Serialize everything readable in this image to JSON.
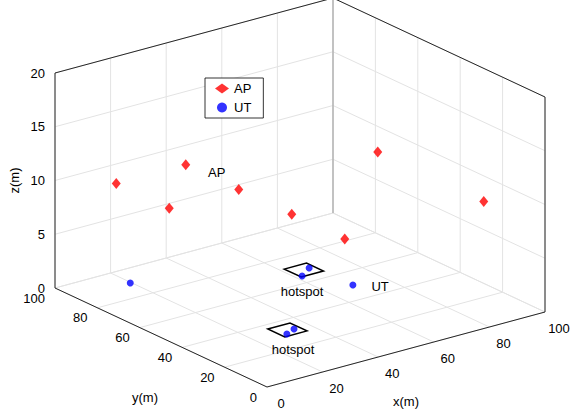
{
  "chart_data": {
    "type": "scatter3d",
    "xlabel": "x(m)",
    "ylabel": "y(m)",
    "zlabel": "z(m)",
    "xlim": [
      0,
      100
    ],
    "ylim": [
      0,
      100
    ],
    "zlim": [
      0,
      20
    ],
    "xticks": [
      0,
      20,
      40,
      60,
      80,
      100
    ],
    "yticks": [
      0,
      20,
      40,
      60,
      80,
      100
    ],
    "zticks": [
      0,
      5,
      10,
      15,
      20
    ],
    "grid": true,
    "legend": "upper left",
    "series": [
      {
        "name": "AP",
        "color": "#ff0000",
        "marker": "diamond",
        "x": [
          12.5,
          37.5,
          12.5,
          37.5,
          37.5,
          37.5,
          87.5,
          87.5
        ],
        "y": [
          87.5,
          87.5,
          62.5,
          62.5,
          37.5,
          12.5,
          62.5,
          12.5
        ],
        "z": [
          10,
          10,
          10,
          10,
          10,
          10,
          10,
          10
        ]
      },
      {
        "name": "UT",
        "color": "#0000ff",
        "marker": "circle",
        "x": [
          19.6,
          67.7,
          62.2,
          69.4,
          34.5,
          30.4
        ],
        "y": [
          90.2,
          68.9,
          65.0,
          50.5,
          32.5,
          30.5
        ],
        "z": [
          0,
          0,
          0,
          0,
          0,
          0
        ]
      }
    ],
    "annotations": [
      {
        "text": "AP",
        "x": 41,
        "y": 77.5,
        "z": 10
      },
      {
        "text": "UT",
        "x": 75,
        "y": 45,
        "z": 0
      }
    ],
    "hotspots": [
      {
        "label": "hotspot",
        "xlim": [
          61.5,
          69.5
        ],
        "ylim": [
          64.5,
          72.5
        ],
        "label_x": 54.4,
        "label_y": 54.8
      },
      {
        "label": "hotspot",
        "xlim": [
          28.5,
          36.5
        ],
        "ylim": [
          29,
          37
        ],
        "label_x": 24.5,
        "label_y": 19.8
      }
    ]
  }
}
